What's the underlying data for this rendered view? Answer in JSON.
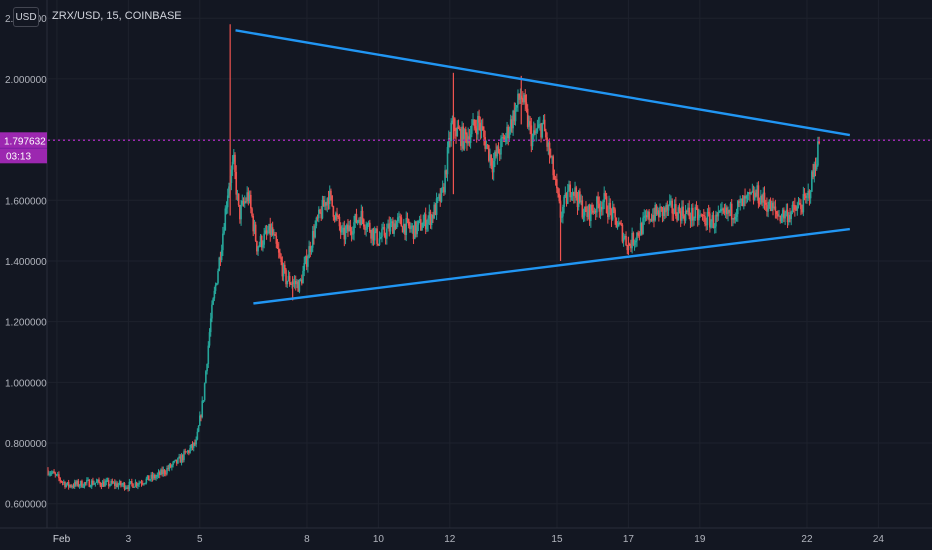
{
  "header": {
    "currency_button": "USD",
    "symbol": "ZRX/USD",
    "interval": "15",
    "exchange": "COINBASE"
  },
  "price_marker": {
    "price": 1.797632,
    "label": "1.797632",
    "countdown": "03:13",
    "color": "#9c27b0"
  },
  "colors": {
    "background": "#131722",
    "up": "#26a69a",
    "down": "#ef5350",
    "trendline": "#2196f3",
    "grid": "#1e222d",
    "axis_text": "#b2b5be"
  },
  "chart_data": {
    "type": "candlestick",
    "y_axis": {
      "range": [
        0.52,
        2.26
      ],
      "ticks": [
        "0.600000",
        "0.800000",
        "1.000000",
        "1.200000",
        "1.400000",
        "1.600000",
        "1.800000",
        "2.000000",
        "2.200000"
      ],
      "tick_values": [
        0.6,
        0.8,
        1.0,
        1.2,
        1.4,
        1.6,
        1.8,
        2.0,
        2.2
      ]
    },
    "x_axis": {
      "range_days": [
        0.75,
        25.5
      ],
      "ticks": [
        {
          "label": "Feb",
          "day": 1
        },
        {
          "label": "3",
          "day": 3
        },
        {
          "label": "5",
          "day": 5
        },
        {
          "label": "8",
          "day": 8
        },
        {
          "label": "10",
          "day": 10
        },
        {
          "label": "12",
          "day": 12
        },
        {
          "label": "15",
          "day": 15
        },
        {
          "label": "17",
          "day": 17
        },
        {
          "label": "19",
          "day": 19
        },
        {
          "label": "22",
          "day": 22
        },
        {
          "label": "24",
          "day": 24
        }
      ]
    },
    "price_path": [
      [
        0.75,
        0.71
      ],
      [
        1.3,
        0.66
      ],
      [
        2.0,
        0.67
      ],
      [
        3.0,
        0.66
      ],
      [
        3.8,
        0.69
      ],
      [
        4.4,
        0.74
      ],
      [
        4.9,
        0.8
      ],
      [
        5.1,
        0.95
      ],
      [
        5.3,
        1.2
      ],
      [
        5.6,
        1.45
      ],
      [
        5.8,
        1.65
      ],
      [
        5.95,
        1.72
      ],
      [
        6.1,
        1.55
      ],
      [
        6.35,
        1.62
      ],
      [
        6.6,
        1.45
      ],
      [
        7.0,
        1.5
      ],
      [
        7.4,
        1.34
      ],
      [
        7.8,
        1.32
      ],
      [
        8.2,
        1.5
      ],
      [
        8.6,
        1.62
      ],
      [
        9.0,
        1.48
      ],
      [
        9.5,
        1.55
      ],
      [
        10.0,
        1.47
      ],
      [
        10.5,
        1.53
      ],
      [
        11.0,
        1.5
      ],
      [
        11.5,
        1.55
      ],
      [
        11.8,
        1.62
      ],
      [
        12.05,
        1.85
      ],
      [
        12.4,
        1.8
      ],
      [
        12.8,
        1.86
      ],
      [
        13.2,
        1.72
      ],
      [
        13.6,
        1.82
      ],
      [
        14.0,
        1.95
      ],
      [
        14.3,
        1.8
      ],
      [
        14.6,
        1.85
      ],
      [
        14.85,
        1.72
      ],
      [
        15.1,
        1.55
      ],
      [
        15.4,
        1.65
      ],
      [
        15.8,
        1.55
      ],
      [
        16.3,
        1.6
      ],
      [
        16.8,
        1.5
      ],
      [
        17.0,
        1.45
      ],
      [
        17.6,
        1.55
      ],
      [
        18.2,
        1.57
      ],
      [
        18.8,
        1.55
      ],
      [
        19.4,
        1.53
      ],
      [
        20.0,
        1.57
      ],
      [
        20.6,
        1.62
      ],
      [
        21.2,
        1.55
      ],
      [
        21.6,
        1.56
      ],
      [
        22.0,
        1.6
      ],
      [
        22.2,
        1.7
      ],
      [
        22.35,
        1.8
      ]
    ],
    "spikes": [
      {
        "day": 5.85,
        "high": 2.18,
        "low": 1.55
      },
      {
        "day": 7.6,
        "high": 1.35,
        "low": 1.27
      },
      {
        "day": 12.1,
        "high": 2.02,
        "low": 1.62
      },
      {
        "day": 14.0,
        "high": 2.01,
        "low": 1.85
      },
      {
        "day": 15.1,
        "high": 1.6,
        "low": 1.4
      },
      {
        "day": 17.0,
        "high": 1.48,
        "low": 1.42
      }
    ],
    "trendlines": [
      {
        "name": "upper",
        "from": {
          "day": 6.0,
          "price": 2.16
        },
        "to": {
          "day": 23.2,
          "price": 1.815
        }
      },
      {
        "name": "lower",
        "from": {
          "day": 6.5,
          "price": 1.26
        },
        "to": {
          "day": 23.2,
          "price": 1.505
        }
      }
    ]
  }
}
